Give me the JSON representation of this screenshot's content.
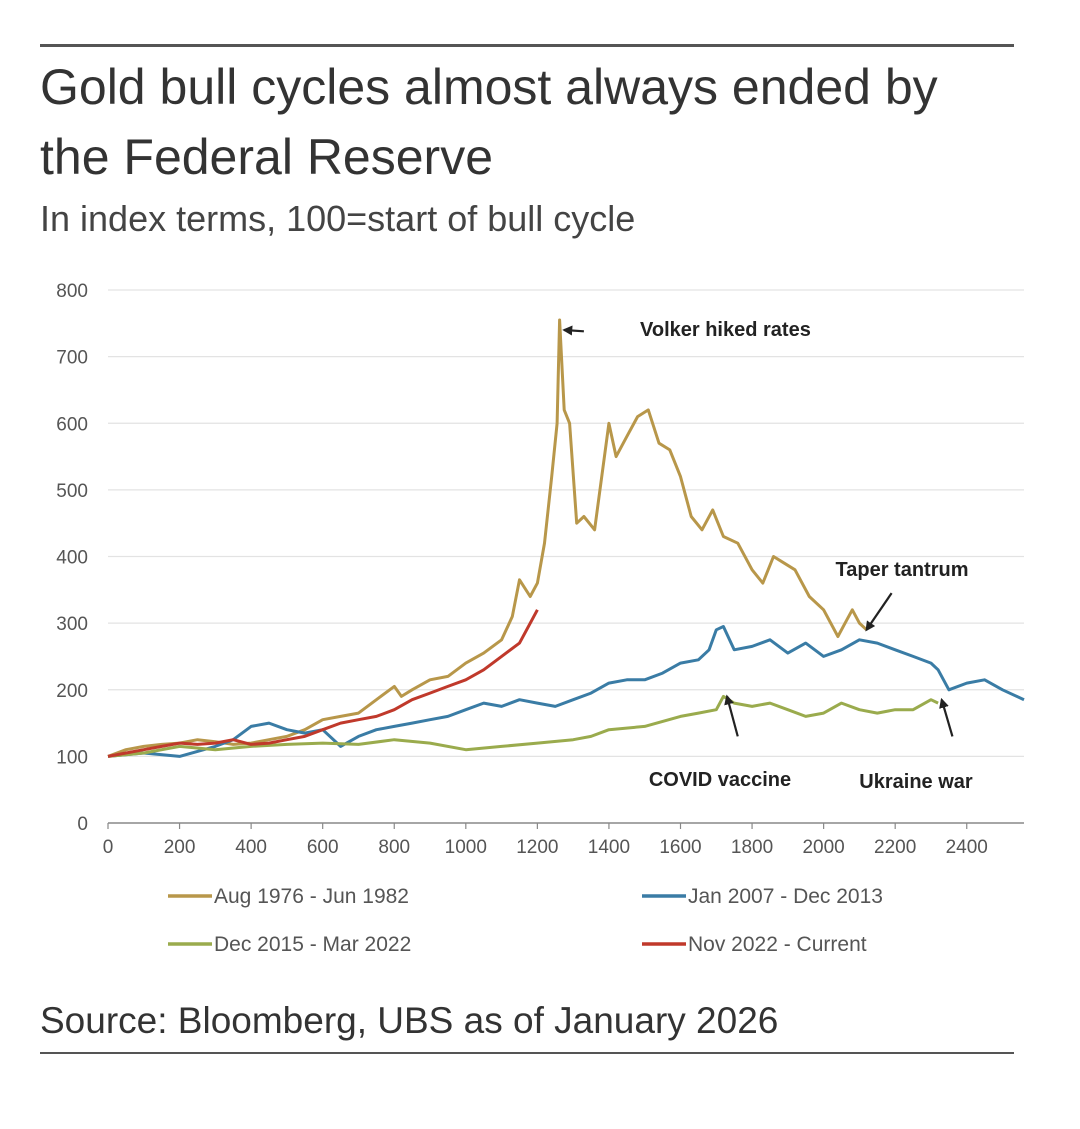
{
  "header": {
    "title": "Gold bull cycles almost always ended by the Federal Reserve",
    "subtitle": "In index terms, 100=start of bull cycle"
  },
  "footer": {
    "source": "Source: Bloomberg, UBS as of January 2026"
  },
  "chart_data": {
    "type": "line",
    "title": "Gold bull cycles almost always ended by the Federal Reserve",
    "subtitle": "In index terms, 100=start of bull cycle",
    "xlabel": "",
    "ylabel": "",
    "xlim": [
      0,
      2560
    ],
    "ylim": [
      0,
      800
    ],
    "x_ticks": [
      0,
      200,
      400,
      600,
      800,
      1000,
      1200,
      1400,
      1600,
      1800,
      2000,
      2200,
      2400
    ],
    "y_ticks": [
      0,
      100,
      200,
      300,
      400,
      500,
      600,
      700,
      800
    ],
    "grid": "horizontal",
    "legend_position": "bottom",
    "series": [
      {
        "name": "Aug 1976 - Jun 1982",
        "color": "#b8974a",
        "x": [
          0,
          50,
          100,
          150,
          200,
          250,
          300,
          350,
          400,
          450,
          500,
          550,
          600,
          650,
          700,
          750,
          800,
          820,
          850,
          900,
          950,
          1000,
          1050,
          1100,
          1130,
          1150,
          1180,
          1200,
          1220,
          1240,
          1255,
          1262,
          1275,
          1290,
          1310,
          1330,
          1360,
          1400,
          1420,
          1450,
          1480,
          1510,
          1540,
          1570,
          1600,
          1630,
          1660,
          1690,
          1720,
          1760,
          1800,
          1830,
          1860,
          1890,
          1920,
          1960,
          2000,
          2040,
          2060,
          2080,
          2100,
          2120
        ],
        "y": [
          100,
          110,
          115,
          118,
          120,
          125,
          122,
          118,
          120,
          125,
          130,
          140,
          155,
          160,
          165,
          185,
          205,
          190,
          200,
          215,
          220,
          240,
          255,
          275,
          310,
          365,
          340,
          360,
          420,
          520,
          600,
          755,
          620,
          600,
          450,
          460,
          440,
          600,
          550,
          580,
          610,
          620,
          570,
          560,
          520,
          460,
          440,
          470,
          430,
          420,
          380,
          360,
          400,
          390,
          380,
          340,
          320,
          280,
          300,
          320,
          300,
          290
        ]
      },
      {
        "name": "Jan 2007 - Dec 2013",
        "color": "#3a7ca5",
        "x": [
          0,
          100,
          200,
          300,
          350,
          400,
          450,
          500,
          550,
          600,
          650,
          700,
          750,
          800,
          850,
          900,
          950,
          1000,
          1050,
          1100,
          1150,
          1200,
          1250,
          1300,
          1350,
          1400,
          1450,
          1500,
          1550,
          1600,
          1650,
          1680,
          1700,
          1720,
          1750,
          1800,
          1850,
          1900,
          1950,
          2000,
          2050,
          2100,
          2150,
          2200,
          2250,
          2300,
          2320,
          2350,
          2400,
          2450,
          2500,
          2560
        ],
        "y": [
          100,
          105,
          100,
          115,
          125,
          145,
          150,
          140,
          135,
          140,
          115,
          130,
          140,
          145,
          150,
          155,
          160,
          170,
          180,
          175,
          185,
          180,
          175,
          185,
          195,
          210,
          215,
          215,
          225,
          240,
          245,
          260,
          290,
          295,
          260,
          265,
          275,
          255,
          270,
          250,
          260,
          275,
          270,
          260,
          250,
          240,
          230,
          200,
          210,
          215,
          200,
          185
        ]
      },
      {
        "name": "Dec 2015 - Mar 2022",
        "color": "#9aab4d",
        "x": [
          0,
          100,
          200,
          300,
          400,
          500,
          600,
          700,
          800,
          900,
          1000,
          1100,
          1200,
          1300,
          1350,
          1400,
          1500,
          1600,
          1650,
          1700,
          1720,
          1750,
          1800,
          1850,
          1900,
          1950,
          2000,
          2050,
          2100,
          2150,
          2200,
          2250,
          2300,
          2320
        ],
        "y": [
          100,
          105,
          115,
          110,
          115,
          118,
          120,
          118,
          125,
          120,
          110,
          115,
          120,
          125,
          130,
          140,
          145,
          160,
          165,
          170,
          190,
          180,
          175,
          180,
          170,
          160,
          165,
          180,
          170,
          165,
          170,
          170,
          185,
          180
        ]
      },
      {
        "name": "Nov 2022 - Current",
        "color": "#c0392b",
        "x": [
          0,
          50,
          100,
          150,
          200,
          250,
          300,
          350,
          400,
          450,
          500,
          550,
          600,
          650,
          700,
          750,
          800,
          850,
          900,
          950,
          1000,
          1050,
          1100,
          1150,
          1200
        ],
        "y": [
          100,
          105,
          110,
          115,
          120,
          118,
          120,
          125,
          118,
          120,
          125,
          130,
          140,
          150,
          155,
          160,
          170,
          185,
          195,
          205,
          215,
          230,
          250,
          270,
          320
        ]
      }
    ],
    "annotations": [
      {
        "text": "Volker hiked rates",
        "x": 1450,
        "y": 740
      },
      {
        "text": "Taper tantrum",
        "x": 2260,
        "y": 380
      },
      {
        "text": "COVID vaccine",
        "x": 1720,
        "y": 65
      },
      {
        "text": "Ukraine war",
        "x": 2270,
        "y": 65
      }
    ]
  }
}
